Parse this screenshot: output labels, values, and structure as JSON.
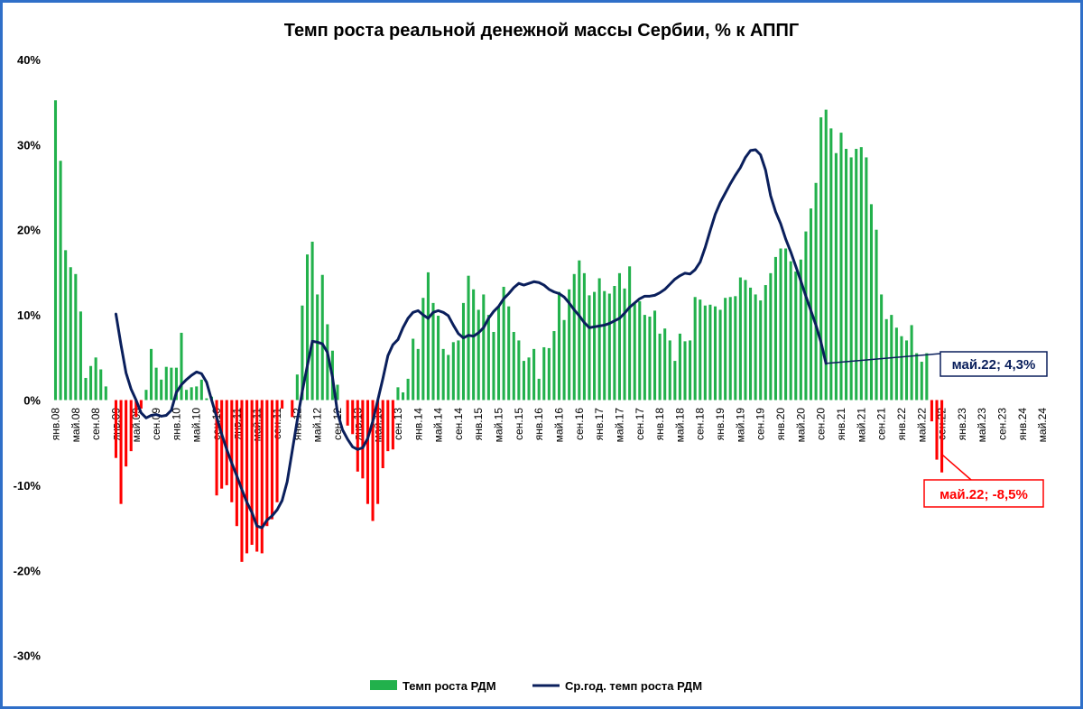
{
  "chart_data": {
    "type": "bar",
    "title": "Темп роста реальной денежной массы Сербии, % к АППГ",
    "xlabel": "",
    "ylabel": "",
    "ylim": [
      -30,
      40
    ],
    "yticks": [
      "40%",
      "30%",
      "20%",
      "10%",
      "0%",
      "-10%",
      "-20%",
      "-30%"
    ],
    "ytick_values": [
      40,
      30,
      20,
      10,
      0,
      -10,
      -20,
      -30
    ],
    "x_tick_labels": [
      "янв.08",
      "май.08",
      "сен.08",
      "янв.09",
      "май.09",
      "сен.09",
      "янв.10",
      "май.10",
      "сен.10",
      "янв.11",
      "май.11",
      "сен.11",
      "янв.12",
      "май.12",
      "сен.12",
      "янв.13",
      "май.13",
      "сен.13",
      "янв.14",
      "май.14",
      "сен.14",
      "янв.15",
      "май.15",
      "сен.15",
      "янв.16",
      "май.16",
      "сен.16",
      "янв.17",
      "май.17",
      "сен.17",
      "янв.18",
      "май.18",
      "сен.18",
      "янв.19",
      "май.19",
      "сен.19",
      "янв.20",
      "май.20",
      "сен.20",
      "янв.21",
      "май.21",
      "сен.21",
      "янв.22",
      "май.22",
      "сен.22",
      "янв.23",
      "май.23",
      "сен.23",
      "янв.24",
      "май.24"
    ],
    "tick_step_months": 4,
    "total_months": 200,
    "bar_colors": {
      "positive": "#22b14c",
      "negative": "#ff0000"
    },
    "line_color": "#0a1f5c",
    "series": [
      {
        "name": "Темп роста РДМ",
        "type": "bar",
        "values": [
          35.2,
          28.1,
          17.6,
          15.6,
          14.8,
          10.4,
          2.6,
          4.0,
          5.0,
          3.6,
          1.6,
          0,
          -6.8,
          -12.2,
          -7.8,
          -6.0,
          -2.0,
          -1.0,
          1.2,
          6.0,
          3.8,
          2.4,
          3.9,
          3.8,
          3.8,
          7.9,
          1.2,
          1.5,
          1.6,
          2.4,
          0.2,
          0.4,
          -11.2,
          -10.4,
          -10.0,
          -12.0,
          -14.8,
          -19.0,
          -18.0,
          -17.0,
          -17.8,
          -18.0,
          -14.8,
          -14.0,
          -12.0,
          -1.0,
          0,
          -2.0,
          3.0,
          11.1,
          17.1,
          18.6,
          12.4,
          14.7,
          8.9,
          5.8,
          1.8,
          0,
          -3.0,
          -4.0,
          -8.4,
          -9.2,
          -12.2,
          -14.2,
          -12.2,
          -8.0,
          -6.0,
          -5.8,
          1.5,
          0.9,
          2.5,
          7.2,
          6.0,
          12.0,
          15.0,
          11.4,
          9.9,
          6.0,
          5.3,
          6.8,
          7.0,
          11.4,
          14.6,
          13.0,
          10.6,
          12.4,
          10.0,
          8.0,
          11.0,
          13.3,
          11.0,
          8.0,
          7.0,
          4.6,
          5.0,
          6.0,
          2.5,
          6.2,
          6.1,
          8.1,
          12.7,
          9.4,
          13.0,
          14.8,
          16.4,
          14.9,
          12.3,
          12.7,
          14.3,
          12.8,
          12.5,
          13.4,
          14.9,
          13.1,
          15.7,
          11.3,
          11.6,
          10.0,
          9.8,
          10.5,
          7.8,
          8.4,
          7.0,
          4.6,
          7.8,
          6.9,
          7.0,
          12.1,
          11.8,
          11.1,
          11.2,
          11.0,
          10.6,
          12.0,
          12.1,
          12.2,
          14.4,
          14.1,
          13.2,
          12.4,
          11.7,
          13.5,
          14.9,
          16.8,
          17.8,
          17.8,
          16.3,
          15.1,
          16.5,
          19.8,
          22.5,
          25.5,
          33.2,
          34.1,
          31.9,
          29.0,
          31.4,
          29.5,
          28.5,
          29.5,
          29.7,
          28.5,
          23.0,
          20.0,
          12.4,
          9.5,
          10.0,
          8.5,
          7.5,
          7.0,
          8.8,
          5.5,
          4.5,
          5.5,
          -2.5,
          -7.0,
          -8.5
        ]
      },
      {
        "name": "Ср.год. темп роста РДМ",
        "type": "line",
        "start_index": 12,
        "values": [
          10.1,
          6.5,
          3.2,
          1.3,
          0.0,
          -1.5,
          -2.1,
          -1.8,
          -1.7,
          -1.9,
          -1.8,
          -1.2,
          0.9,
          1.8,
          2.4,
          2.9,
          3.3,
          3.1,
          2.1,
          0.0,
          -2.0,
          -4.0,
          -5.8,
          -7.4,
          -8.9,
          -10.5,
          -12.0,
          -13.2,
          -14.8,
          -15.0,
          -14.1,
          -13.6,
          -12.9,
          -11.8,
          -9.6,
          -6.0,
          -2.4,
          1.0,
          4.0,
          6.9,
          6.8,
          6.6,
          5.6,
          2.7,
          -1.5,
          -3.5,
          -4.6,
          -5.5,
          -5.8,
          -5.6,
          -4.5,
          -2.5,
          0.0,
          2.5,
          5.2,
          6.5,
          7.1,
          8.5,
          9.6,
          10.3,
          10.5,
          10.0,
          9.6,
          10.3,
          10.5,
          10.3,
          9.9,
          8.8,
          7.8,
          7.3,
          7.6,
          7.5,
          7.9,
          8.5,
          9.6,
          10.4,
          11.0,
          11.9,
          12.5,
          13.2,
          13.7,
          13.5,
          13.7,
          13.9,
          13.8,
          13.5,
          13.0,
          12.7,
          12.5,
          12.1,
          11.4,
          10.6,
          9.9,
          9.1,
          8.5,
          8.6,
          8.7,
          8.8,
          9.0,
          9.3,
          9.6,
          10.2,
          10.9,
          11.4,
          11.9,
          12.2,
          12.2,
          12.3,
          12.6,
          13.0,
          13.6,
          14.2,
          14.6,
          14.9,
          14.8,
          15.3,
          16.2,
          17.9,
          19.9,
          21.8,
          23.2,
          24.3,
          25.4,
          26.4,
          27.3,
          28.5,
          29.3,
          29.4,
          28.8,
          27.0,
          24.0,
          22.1,
          20.7,
          18.9,
          17.4,
          15.7,
          14.0,
          12.2,
          10.5,
          8.8,
          6.8,
          4.3
        ]
      }
    ],
    "callouts": [
      {
        "text": "май.22; 4,3%",
        "series": "Ср.год. темп роста РДМ",
        "color": "#0a1f5c"
      },
      {
        "text": "май.22; -8,5%",
        "series": "Темп роста РДМ",
        "color": "#ff0000"
      }
    ],
    "legend": {
      "position": "bottom",
      "items": [
        {
          "label": "Темп роста РДМ",
          "kind": "bar",
          "color": "#22b14c"
        },
        {
          "label": "Ср.год. темп роста РДМ",
          "kind": "line",
          "color": "#0a1f5c"
        }
      ]
    }
  }
}
